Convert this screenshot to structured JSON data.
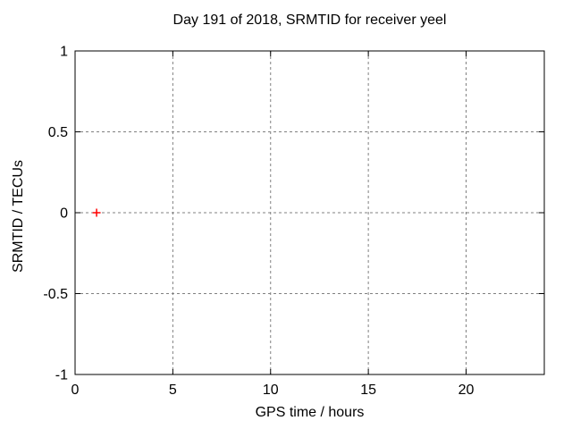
{
  "chart_data": {
    "type": "scatter",
    "title": "Day 191 of 2018, SRMTID for receiver yeel",
    "xlabel": "GPS time / hours",
    "ylabel": "SRMTID / TECUs",
    "xlim": [
      0,
      24
    ],
    "ylim": [
      -1,
      1
    ],
    "xticks": {
      "values": [
        0,
        5,
        10,
        15,
        20
      ],
      "labels": [
        "0",
        "5",
        "10",
        "15",
        "20"
      ]
    },
    "yticks": {
      "values": [
        -1,
        -0.5,
        0,
        0.5,
        1
      ],
      "labels": [
        "-1",
        "-0.5",
        "0",
        "0.5",
        "1"
      ]
    },
    "grid": true,
    "legend": "none",
    "series": [
      {
        "marker": "plus",
        "color": "#ff0000",
        "points": [
          [
            1.1,
            0
          ]
        ]
      }
    ],
    "colors": {
      "background": "#ffffff",
      "border": "#000000",
      "grid": "#808080",
      "text": "#000000"
    }
  }
}
